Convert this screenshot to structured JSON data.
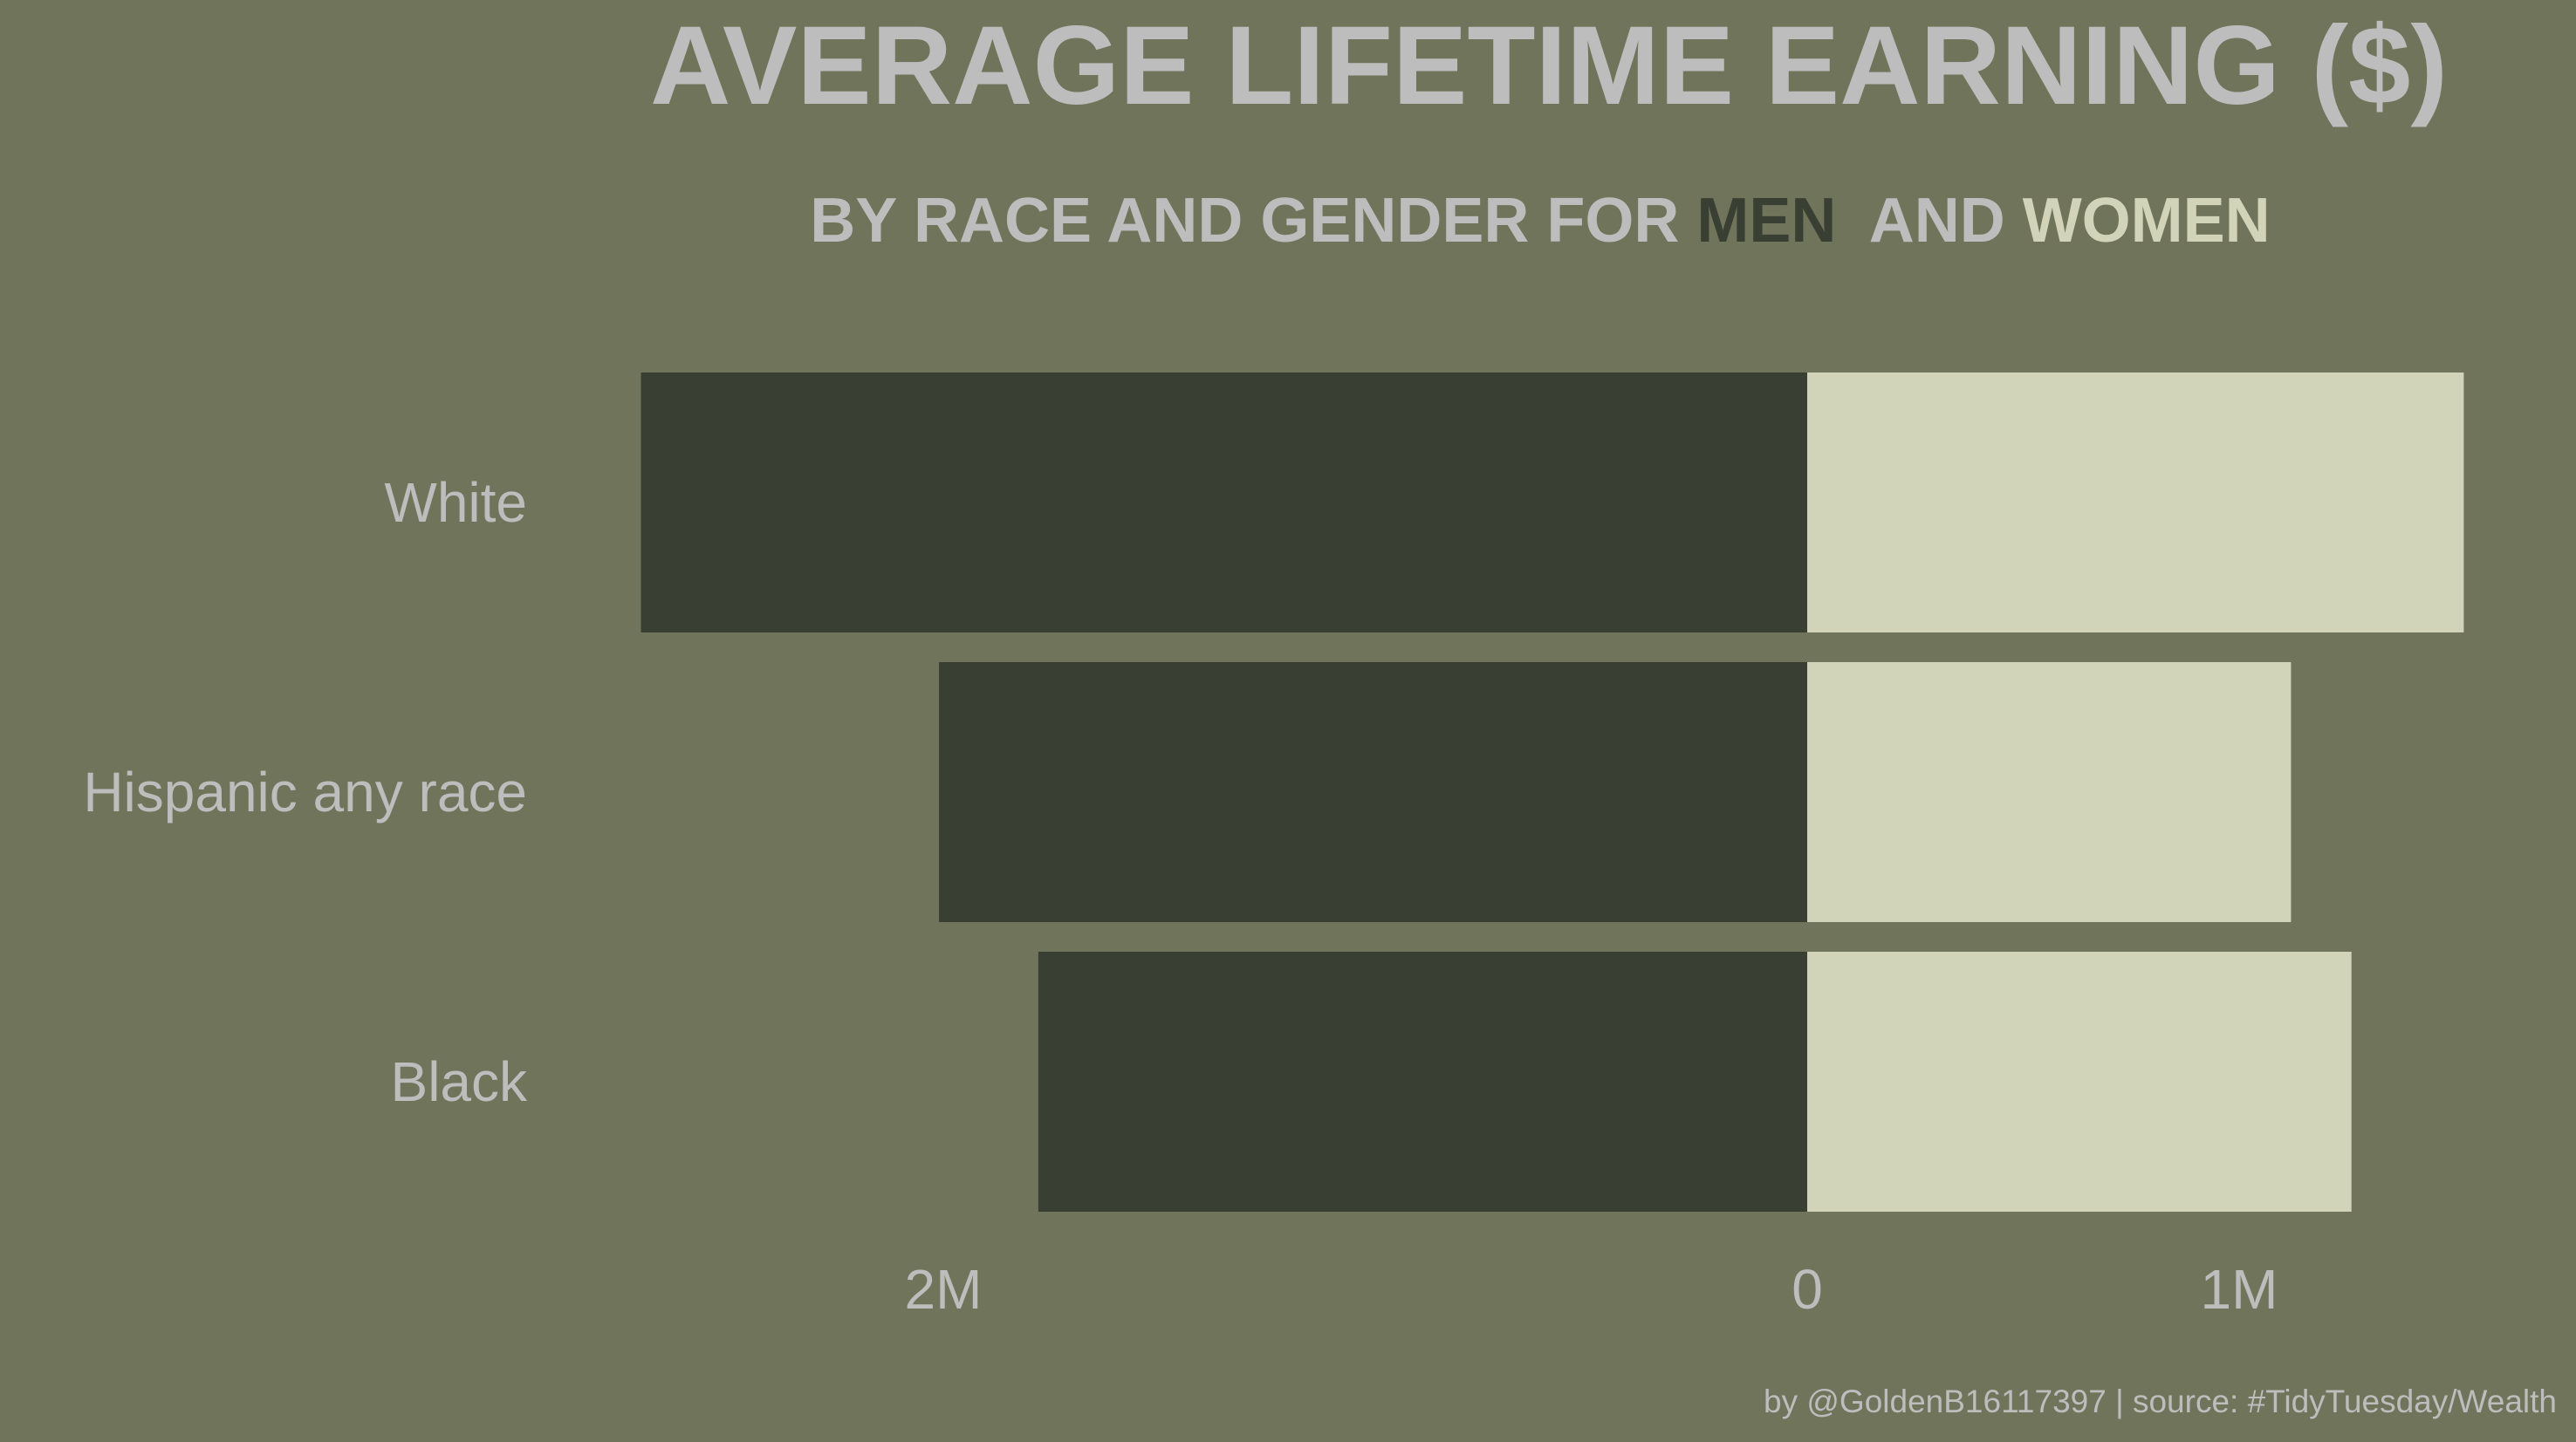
{
  "chart_data": {
    "type": "bar",
    "orientation": "horizontal-diverging",
    "title": "AVERAGE LIFETIME EARNING ($)",
    "subtitle": {
      "prefix": "BY RACE AND GENDER FOR ",
      "men_word": "MEN",
      "middle": "  AND ",
      "women_word": "WOMEN"
    },
    "categories": [
      "White",
      "Hispanic any race",
      "Black"
    ],
    "series": [
      {
        "name": "MEN",
        "color": "#3a3f34",
        "side": "left",
        "values": [
          2700000,
          2010000,
          1780000
        ]
      },
      {
        "name": "WOMEN",
        "color": "#d1d4b9",
        "side": "right",
        "values": [
          1520000,
          1120000,
          1260000
        ]
      }
    ],
    "x_ticks": [
      {
        "value": -2000000,
        "label": "2M"
      },
      {
        "value": 0,
        "label": "0"
      },
      {
        "value": 1000000,
        "label": "1M"
      }
    ],
    "xlim": [
      -2700000,
      1520000
    ],
    "grid": false,
    "legend": "none (encoded in subtitle colors)",
    "colors": {
      "background": "#6f745a",
      "text": "#bdbdbd",
      "men": "#3a3f34",
      "women": "#d1d4b9"
    }
  },
  "caption": "by @GoldenB16117397 | source: #TidyTuesday/Wealth"
}
